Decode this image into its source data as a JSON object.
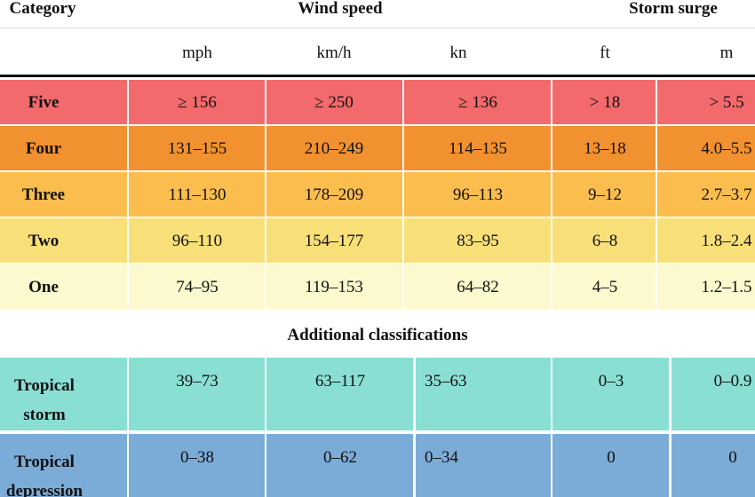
{
  "header": {
    "category": "Category",
    "wind_speed": "Wind speed",
    "storm_surge": "Storm surge",
    "units": [
      "mph",
      "km/h",
      "kn",
      "ft",
      "m"
    ]
  },
  "table": {
    "rows": [
      [
        "Five",
        "≥ 156",
        "≥ 250",
        "≥ 136",
        "> 18",
        "> 5.5"
      ],
      [
        "Four",
        "131–155",
        "210–249",
        "114–135",
        "13–18",
        "4.0–5.5"
      ],
      [
        "Three",
        "111–130",
        "178–209",
        "96–113",
        "9–12",
        "2.7–3.7"
      ],
      [
        "Two",
        "96–110",
        "154–177",
        "83–95",
        "6–8",
        "1.8–2.4"
      ],
      [
        "One",
        "74–95",
        "119–153",
        "64–82",
        "4–5",
        "1.2–1.5"
      ]
    ]
  },
  "additional": {
    "title": "Additional classifications",
    "rows": [
      [
        "Tropical storm",
        "39–73",
        "63–117",
        "35–63",
        "0–3",
        "0–0.9"
      ],
      [
        "Tropical depression",
        "0–38",
        "0–62",
        "0–34",
        "0",
        "0"
      ]
    ]
  }
}
